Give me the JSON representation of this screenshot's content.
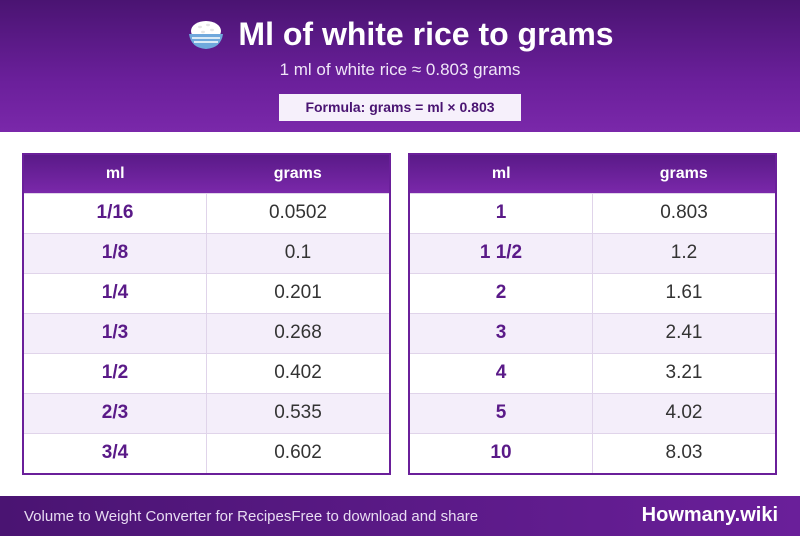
{
  "header": {
    "icon": "rice-bowl-icon",
    "title": "Ml of white rice to grams",
    "subtitle": "1 ml of white rice ≈ 0.803 grams",
    "formula": "Formula: grams = ml × 0.803"
  },
  "tables": [
    {
      "headers": {
        "ml": "ml",
        "grams": "grams"
      },
      "rows": [
        {
          "ml": "1/16",
          "grams": "0.0502"
        },
        {
          "ml": "1/8",
          "grams": "0.1"
        },
        {
          "ml": "1/4",
          "grams": "0.201"
        },
        {
          "ml": "1/3",
          "grams": "0.268"
        },
        {
          "ml": "1/2",
          "grams": "0.402"
        },
        {
          "ml": "2/3",
          "grams": "0.535"
        },
        {
          "ml": "3/4",
          "grams": "0.602"
        }
      ]
    },
    {
      "headers": {
        "ml": "ml",
        "grams": "grams"
      },
      "rows": [
        {
          "ml": "1",
          "grams": "0.803"
        },
        {
          "ml": "1 1/2",
          "grams": "1.2"
        },
        {
          "ml": "2",
          "grams": "1.61"
        },
        {
          "ml": "3",
          "grams": "2.41"
        },
        {
          "ml": "4",
          "grams": "3.21"
        },
        {
          "ml": "5",
          "grams": "4.02"
        },
        {
          "ml": "10",
          "grams": "8.03"
        }
      ]
    }
  ],
  "footer": {
    "left_text_1": "Volume to Weight Converter for Recipes",
    "left_text_2": "Free to download and share",
    "brand": "Howmany.wiki"
  },
  "colors": {
    "primary": "#6a1f9a",
    "dark": "#4a1472",
    "row_alt": "#f4eefa"
  }
}
